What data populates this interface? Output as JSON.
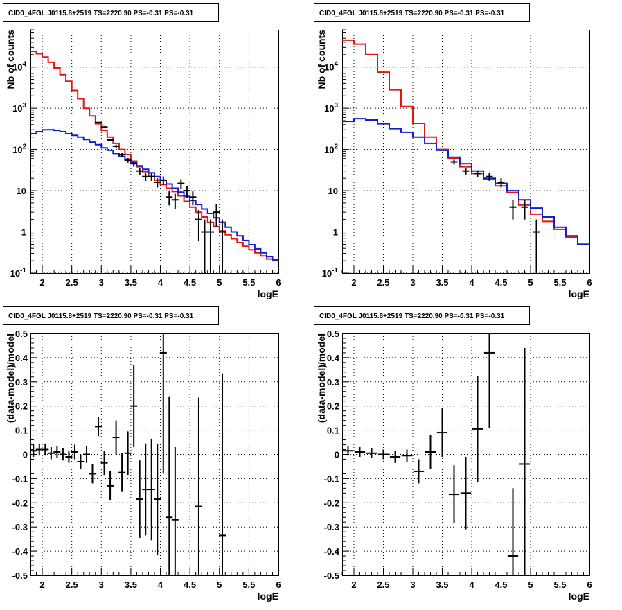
{
  "colors": {
    "data": "#000000",
    "total_model": "#e8130f",
    "source_model": "#0a1fd6",
    "grid": "#000000"
  },
  "chart_data": [
    {
      "type": "line",
      "title": "CID0_4FGL J0115.8+2519 TS=2220.90 PS=-0.31 PS=-0.31",
      "xlabel": "logE",
      "ylabel": "Nb of counts",
      "xlim": [
        1.8,
        6.0
      ],
      "ylim": [
        0.1,
        80000
      ],
      "log_y": true,
      "grid": true,
      "x_ticks": [
        "2",
        "2.5",
        "3",
        "3.5",
        "4",
        "4.5",
        "5",
        "5.5",
        "6"
      ],
      "y_ticks": [
        "10^-1",
        "1",
        "10",
        "10^2",
        "10^3",
        "10^4"
      ],
      "series": [
        {
          "role": "total_model",
          "style": "step",
          "bin_width": 0.1,
          "x": [
            1.8,
            1.9,
            2.0,
            2.1,
            2.2,
            2.3,
            2.4,
            2.5,
            2.6,
            2.7,
            2.8,
            2.9,
            3.0,
            3.1,
            3.2,
            3.3,
            3.4,
            3.5,
            3.6,
            3.7,
            3.8,
            3.9,
            4.0,
            4.1,
            4.2,
            4.3,
            4.4,
            4.5,
            4.6,
            4.7,
            4.8,
            4.9,
            5.0,
            5.1,
            5.2,
            5.3,
            5.4,
            5.5,
            5.6,
            5.7,
            5.8,
            5.9
          ],
          "y": [
            24000,
            21000,
            17500,
            13000,
            9500,
            6500,
            4500,
            2700,
            1700,
            1000,
            650,
            420,
            290,
            200,
            140,
            100,
            75,
            52,
            38,
            29,
            22,
            18,
            14,
            11.5,
            9.5,
            7.5,
            5.5,
            4.0,
            3.0,
            2.3,
            1.7,
            1.35,
            1.05,
            0.85,
            0.68,
            0.55,
            0.45,
            0.37,
            0.31,
            0.26,
            0.22,
            0.2
          ]
        },
        {
          "role": "source_model",
          "style": "step",
          "bin_width": 0.1,
          "x": [
            1.8,
            1.9,
            2.0,
            2.1,
            2.2,
            2.3,
            2.4,
            2.5,
            2.6,
            2.7,
            2.8,
            2.9,
            3.0,
            3.1,
            3.2,
            3.3,
            3.4,
            3.5,
            3.6,
            3.7,
            3.8,
            3.9,
            4.0,
            4.1,
            4.2,
            4.3,
            4.4,
            4.5,
            4.6,
            4.7,
            4.8,
            4.9,
            5.0,
            5.1,
            5.2,
            5.3,
            5.4,
            5.5,
            5.6,
            5.7,
            5.8,
            5.9
          ],
          "y": [
            240,
            270,
            300,
            300,
            290,
            270,
            240,
            220,
            200,
            175,
            150,
            130,
            110,
            95,
            80,
            68,
            58,
            48,
            40,
            33,
            27,
            22,
            18,
            14.5,
            11.5,
            9.2,
            7.3,
            5.8,
            4.6,
            3.6,
            2.8,
            2.2,
            1.7,
            1.3,
            1.0,
            0.8,
            0.62,
            0.49,
            0.39,
            0.31,
            0.25,
            0.21
          ]
        },
        {
          "role": "data",
          "style": "errorbar",
          "x": [
            2.95,
            3.05,
            3.15,
            3.25,
            3.35,
            3.45,
            3.55,
            3.65,
            3.75,
            3.85,
            3.95,
            4.05,
            4.15,
            4.25,
            4.35,
            4.45,
            4.55,
            4.65,
            4.75,
            4.85,
            4.95,
            5.05
          ],
          "y": [
            450,
            350,
            170,
            120,
            75,
            55,
            45,
            30,
            22,
            22,
            16,
            18,
            7,
            6,
            15,
            10,
            7,
            2,
            1,
            1,
            3,
            1
          ],
          "err": [
            21,
            18,
            13,
            11,
            8.7,
            7.4,
            6.7,
            5.5,
            4.7,
            4.7,
            4,
            4.2,
            2.6,
            2.4,
            3.9,
            3.2,
            2.6,
            1.4,
            1,
            1,
            1.7,
            1
          ]
        }
      ]
    },
    {
      "type": "line",
      "title": "CID0_4FGL J0115.8+2519 TS=2220.90 PS=-0.31 PS=-0.31",
      "xlabel": "logE",
      "ylabel": "Nb of counts",
      "xlim": [
        1.8,
        6.0
      ],
      "ylim": [
        0.1,
        80000
      ],
      "log_y": true,
      "grid": true,
      "x_ticks": [
        "2",
        "2.5",
        "3",
        "3.5",
        "4",
        "4.5",
        "5",
        "5.5",
        "6"
      ],
      "y_ticks": [
        "10^-1",
        "1",
        "10",
        "10^2",
        "10^3",
        "10^4"
      ],
      "series": [
        {
          "role": "total_model",
          "style": "step",
          "bin_width": 0.2,
          "x": [
            1.8,
            2.0,
            2.2,
            2.4,
            2.6,
            2.8,
            3.0,
            3.2,
            3.4,
            3.6,
            3.8,
            4.0,
            4.2,
            4.4,
            4.6,
            4.8,
            5.0,
            5.2,
            5.4,
            5.6,
            5.8
          ],
          "y": [
            45000,
            36000,
            20000,
            7500,
            2800,
            1100,
            430,
            200,
            100,
            60,
            38,
            26,
            19,
            13,
            9,
            4.5,
            2.7,
            1.8,
            1.15,
            0.75,
            0.5
          ]
        },
        {
          "role": "source_model",
          "style": "step",
          "bin_width": 0.2,
          "x": [
            1.8,
            2.0,
            2.2,
            2.4,
            2.6,
            2.8,
            3.0,
            3.2,
            3.4,
            3.6,
            3.8,
            4.0,
            4.2,
            4.4,
            4.6,
            4.8,
            5.0,
            5.2,
            5.4,
            5.6,
            5.8
          ],
          "y": [
            480,
            560,
            520,
            420,
            320,
            260,
            200,
            140,
            95,
            65,
            45,
            30,
            20,
            15,
            10,
            6,
            3.8,
            2.3,
            1.3,
            0.8,
            0.5
          ]
        },
        {
          "role": "data",
          "style": "errorbar",
          "x": [
            3.7,
            3.9,
            4.1,
            4.3,
            4.5,
            4.7,
            4.9,
            5.1
          ],
          "y": [
            50,
            30,
            26,
            22,
            16,
            4,
            4,
            1
          ],
          "err": [
            7,
            5.5,
            5.1,
            4.7,
            4,
            2,
            2,
            1
          ]
        }
      ]
    },
    {
      "type": "scatter",
      "title": "CID0_4FGL J0115.8+2519 TS=2220.90 PS=-0.31 PS=-0.31",
      "xlabel": "logE",
      "ylabel": "(data-model)/model",
      "xlim": [
        1.8,
        6.0
      ],
      "ylim": [
        -0.5,
        0.5
      ],
      "grid": true,
      "x_ticks": [
        "2",
        "2.5",
        "3",
        "3.5",
        "4",
        "4.5",
        "5",
        "5.5",
        "6"
      ],
      "y_ticks": [
        "-0.5",
        "-0.4",
        "-0.3",
        "-0.2",
        "-0.1",
        "0",
        "0.1",
        "0.2",
        "0.3",
        "0.4",
        "0.5"
      ],
      "series": [
        {
          "role": "data",
          "style": "errorbar",
          "bin_width": 0.1,
          "x": [
            1.85,
            1.95,
            2.05,
            2.15,
            2.25,
            2.35,
            2.45,
            2.55,
            2.65,
            2.75,
            2.85,
            2.95,
            3.05,
            3.15,
            3.25,
            3.35,
            3.45,
            3.55,
            3.65,
            3.75,
            3.85,
            3.95,
            4.05,
            4.15,
            4.25,
            4.65,
            5.05
          ],
          "y": [
            0.015,
            0.02,
            0.02,
            0.005,
            0.01,
            0.0,
            -0.01,
            0.01,
            -0.03,
            0.0,
            -0.08,
            0.115,
            -0.035,
            -0.13,
            0.07,
            -0.075,
            0.005,
            0.2,
            -0.185,
            -0.145,
            -0.145,
            -0.185,
            0.42,
            -0.26,
            -0.27,
            -0.215,
            -0.335
          ],
          "err": [
            0.025,
            0.025,
            0.025,
            0.025,
            0.025,
            0.025,
            0.025,
            0.03,
            0.03,
            0.035,
            0.04,
            0.04,
            0.05,
            0.06,
            0.07,
            0.08,
            0.09,
            0.17,
            0.16,
            0.19,
            0.21,
            0.23,
            0.5,
            0.5,
            0.3,
            0.45,
            0.67
          ]
        }
      ]
    },
    {
      "type": "scatter",
      "title": "CID0_4FGL J0115.8+2519 TS=2220.90 PS=-0.31 PS=-0.31",
      "xlabel": "logE",
      "ylabel": "(data-model)/model",
      "xlim": [
        1.8,
        6.0
      ],
      "ylim": [
        -0.5,
        0.5
      ],
      "grid": true,
      "x_ticks": [
        "2",
        "2.5",
        "3",
        "3.5",
        "4",
        "4.5",
        "5",
        "5.5",
        "6"
      ],
      "y_ticks": [
        "-0.5",
        "-0.4",
        "-0.3",
        "-0.2",
        "-0.1",
        "0",
        "0.1",
        "0.2",
        "0.3",
        "0.4",
        "0.5"
      ],
      "series": [
        {
          "role": "data",
          "style": "errorbar",
          "bin_width": 0.2,
          "x": [
            1.9,
            2.1,
            2.3,
            2.5,
            2.7,
            2.9,
            3.1,
            3.3,
            3.5,
            3.7,
            3.9,
            4.1,
            4.3,
            4.7,
            4.9
          ],
          "y": [
            0.015,
            0.01,
            0.005,
            0.0,
            -0.01,
            -0.005,
            -0.07,
            0.01,
            0.09,
            -0.165,
            -0.16,
            0.105,
            0.42,
            -0.42,
            -0.04
          ],
          "err": [
            0.02,
            0.02,
            0.02,
            0.02,
            0.025,
            0.025,
            0.05,
            0.07,
            0.1,
            0.12,
            0.15,
            0.22,
            0.31,
            0.28,
            0.48
          ]
        }
      ]
    }
  ]
}
